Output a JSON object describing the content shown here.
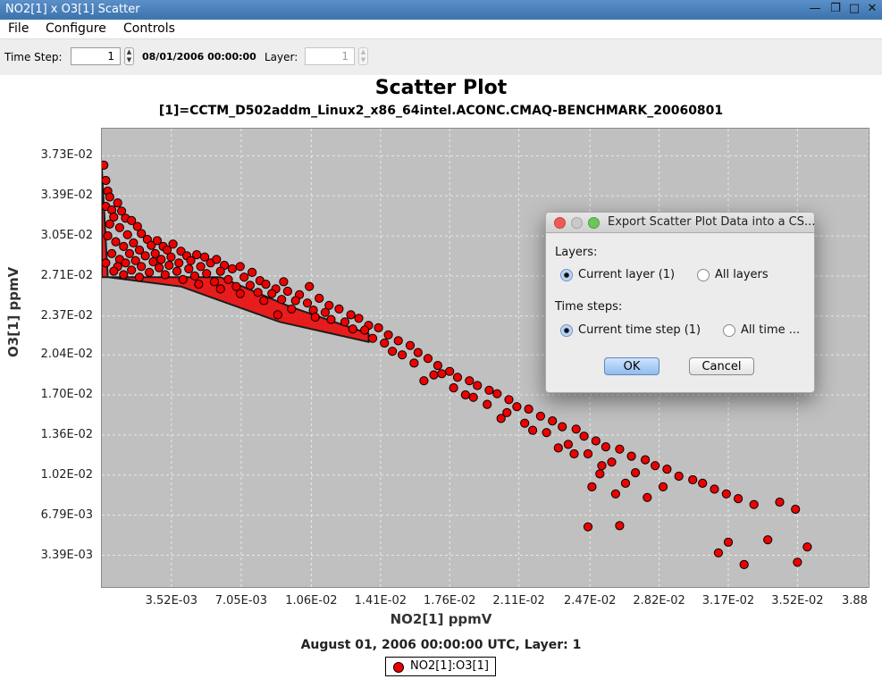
{
  "window": {
    "title": "NO2[1] x O3[1] Scatter"
  },
  "menu": [
    "File",
    "Configure",
    "Controls"
  ],
  "toolbar": {
    "time_step_label": "Time Step:",
    "time_step_value": "1",
    "datetime": "08/01/2006 00:00:00",
    "layer_label": "Layer:",
    "layer_value": "1"
  },
  "chart": {
    "title": "Scatter Plot",
    "subtitle": "[1]=CCTM_D502addm_Linux2_x86_64intel.ACONC.CMAQ-BENCHMARK_20060801",
    "footer": "August 01, 2006 00:00:00 UTC, Layer: 1",
    "legend": "NO2[1]:O3[1]"
  },
  "chart_data": {
    "type": "scatter",
    "xlabel": "NO2[1] ppmV",
    "ylabel": "O3[1] ppmV",
    "xlim": [
      0.0,
      0.0388
    ],
    "ylim": [
      0.0007,
      0.0396
    ],
    "grid": true,
    "legend_position": "bottom",
    "marker_color": "#ee0000",
    "x_ticks": [
      "3.52E-03",
      "7.05E-03",
      "1.06E-02",
      "1.41E-02",
      "1.76E-02",
      "2.11E-02",
      "2.47E-02",
      "2.82E-02",
      "3.17E-02",
      "3.52E-02",
      "3.88E-02"
    ],
    "y_ticks": [
      "3.39E-03",
      "6.79E-03",
      "1.02E-02",
      "1.36E-02",
      "1.70E-02",
      "2.04E-02",
      "2.37E-02",
      "2.71E-02",
      "3.05E-02",
      "3.39E-02",
      "3.73E-02"
    ],
    "series": [
      {
        "name": "NO2[1]:O3[1]",
        "points": [
          [
            0.0001,
            0.0365
          ],
          [
            0.0002,
            0.0352
          ],
          [
            0.0003,
            0.0343
          ],
          [
            0.0004,
            0.0338
          ],
          [
            0.0002,
            0.033
          ],
          [
            0.0005,
            0.0327
          ],
          [
            0.0008,
            0.0333
          ],
          [
            0.0006,
            0.0321
          ],
          [
            0.001,
            0.0326
          ],
          [
            0.0004,
            0.0315
          ],
          [
            0.0012,
            0.032
          ],
          [
            0.0009,
            0.0312
          ],
          [
            0.0015,
            0.0318
          ],
          [
            0.0003,
            0.0305
          ],
          [
            0.0007,
            0.03
          ],
          [
            0.0013,
            0.0306
          ],
          [
            0.0018,
            0.0313
          ],
          [
            0.002,
            0.0307
          ],
          [
            0.0011,
            0.0296
          ],
          [
            0.0016,
            0.0299
          ],
          [
            0.0023,
            0.0302
          ],
          [
            0.0005,
            0.029
          ],
          [
            0.0009,
            0.0285
          ],
          [
            0.0014,
            0.029
          ],
          [
            0.0019,
            0.0293
          ],
          [
            0.0025,
            0.0297
          ],
          [
            0.0028,
            0.0301
          ],
          [
            0.0031,
            0.0296
          ],
          [
            0.0002,
            0.0282
          ],
          [
            0.0008,
            0.0279
          ],
          [
            0.0012,
            0.0282
          ],
          [
            0.0017,
            0.0284
          ],
          [
            0.0022,
            0.0288
          ],
          [
            0.0027,
            0.029
          ],
          [
            0.0033,
            0.0293
          ],
          [
            0.0036,
            0.0298
          ],
          [
            0.0006,
            0.0275
          ],
          [
            0.0015,
            0.0276
          ],
          [
            0.002,
            0.0279
          ],
          [
            0.0026,
            0.0283
          ],
          [
            0.003,
            0.0285
          ],
          [
            0.0035,
            0.0287
          ],
          [
            0.004,
            0.0292
          ],
          [
            0.0043,
            0.0288
          ],
          [
            0.0011,
            0.0272
          ],
          [
            0.0024,
            0.0274
          ],
          [
            0.0029,
            0.0278
          ],
          [
            0.0034,
            0.028
          ],
          [
            0.0039,
            0.0282
          ],
          [
            0.0045,
            0.0284
          ],
          [
            0.0048,
            0.0289
          ],
          [
            0.0052,
            0.0287
          ],
          [
            0.0019,
            0.027
          ],
          [
            0.0032,
            0.0272
          ],
          [
            0.0038,
            0.0275
          ],
          [
            0.0044,
            0.0277
          ],
          [
            0.005,
            0.0279
          ],
          [
            0.0055,
            0.0282
          ],
          [
            0.0058,
            0.0285
          ],
          [
            0.0062,
            0.028
          ],
          [
            0.0041,
            0.0268
          ],
          [
            0.0047,
            0.0271
          ],
          [
            0.0053,
            0.0273
          ],
          [
            0.006,
            0.0275
          ],
          [
            0.0066,
            0.0277
          ],
          [
            0.007,
            0.0279
          ],
          [
            0.0049,
            0.0264
          ],
          [
            0.0057,
            0.0266
          ],
          [
            0.0064,
            0.0268
          ],
          [
            0.0072,
            0.027
          ],
          [
            0.0076,
            0.0274
          ],
          [
            0.008,
            0.0267
          ],
          [
            0.006,
            0.026
          ],
          [
            0.0068,
            0.0262
          ],
          [
            0.0075,
            0.0263
          ],
          [
            0.0083,
            0.0264
          ],
          [
            0.0088,
            0.026
          ],
          [
            0.0092,
            0.0266
          ],
          [
            0.007,
            0.0256
          ],
          [
            0.0079,
            0.0257
          ],
          [
            0.0086,
            0.0256
          ],
          [
            0.0094,
            0.0258
          ],
          [
            0.01,
            0.0255
          ],
          [
            0.0105,
            0.0262
          ],
          [
            0.0082,
            0.025
          ],
          [
            0.0091,
            0.0251
          ],
          [
            0.0098,
            0.025
          ],
          [
            0.0104,
            0.0248
          ],
          [
            0.011,
            0.0252
          ],
          [
            0.0115,
            0.0246
          ],
          [
            0.0096,
            0.0243
          ],
          [
            0.0107,
            0.0242
          ],
          [
            0.0113,
            0.024
          ],
          [
            0.012,
            0.0243
          ],
          [
            0.0126,
            0.0238
          ],
          [
            0.0089,
            0.0238
          ],
          [
            0.0116,
            0.0234
          ],
          [
            0.0123,
            0.0232
          ],
          [
            0.013,
            0.0235
          ],
          [
            0.0135,
            0.0229
          ],
          [
            0.0108,
            0.0236
          ],
          [
            0.0127,
            0.0226
          ],
          [
            0.0133,
            0.0225
          ],
          [
            0.014,
            0.0227
          ],
          [
            0.0145,
            0.0221
          ],
          [
            0.0137,
            0.0218
          ],
          [
            0.0143,
            0.0214
          ],
          [
            0.015,
            0.0216
          ],
          [
            0.0156,
            0.0212
          ],
          [
            0.0147,
            0.0207
          ],
          [
            0.0152,
            0.0204
          ],
          [
            0.016,
            0.0206
          ],
          [
            0.0165,
            0.0201
          ],
          [
            0.0158,
            0.0197
          ],
          [
            0.017,
            0.0195
          ],
          [
            0.0176,
            0.019
          ],
          [
            0.0168,
            0.0187
          ],
          [
            0.018,
            0.0185
          ],
          [
            0.0186,
            0.0182
          ],
          [
            0.0163,
            0.0182
          ],
          [
            0.0178,
            0.0176
          ],
          [
            0.019,
            0.0178
          ],
          [
            0.0196,
            0.0174
          ],
          [
            0.0184,
            0.017
          ],
          [
            0.02,
            0.0171
          ],
          [
            0.0206,
            0.0166
          ],
          [
            0.0195,
            0.0162
          ],
          [
            0.021,
            0.016
          ],
          [
            0.0216,
            0.0158
          ],
          [
            0.0205,
            0.0155
          ],
          [
            0.0222,
            0.0152
          ],
          [
            0.0228,
            0.0148
          ],
          [
            0.0214,
            0.0146
          ],
          [
            0.0233,
            0.0143
          ],
          [
            0.024,
            0.0141
          ],
          [
            0.0225,
            0.0138
          ],
          [
            0.0244,
            0.0135
          ],
          [
            0.025,
            0.0131
          ],
          [
            0.0236,
            0.0128
          ],
          [
            0.0255,
            0.0126
          ],
          [
            0.0262,
            0.0124
          ],
          [
            0.0246,
            0.012
          ],
          [
            0.0268,
            0.0118
          ],
          [
            0.0275,
            0.0115
          ],
          [
            0.0258,
            0.0113
          ],
          [
            0.028,
            0.011
          ],
          [
            0.0286,
            0.0107
          ],
          [
            0.027,
            0.0104
          ],
          [
            0.0292,
            0.0101
          ],
          [
            0.0299,
            0.0098
          ],
          [
            0.0304,
            0.0095
          ],
          [
            0.0239,
            0.012
          ],
          [
            0.0252,
            0.0103
          ],
          [
            0.0265,
            0.0095
          ],
          [
            0.0248,
            0.0092
          ],
          [
            0.026,
            0.0086
          ],
          [
            0.0276,
            0.0083
          ],
          [
            0.0284,
            0.0092
          ],
          [
            0.031,
            0.009
          ],
          [
            0.0316,
            0.0086
          ],
          [
            0.0322,
            0.0082
          ],
          [
            0.0246,
            0.0058
          ],
          [
            0.0262,
            0.0059
          ],
          [
            0.033,
            0.0077
          ],
          [
            0.0343,
            0.0079
          ],
          [
            0.0351,
            0.0073
          ],
          [
            0.0172,
            0.0188
          ],
          [
            0.0188,
            0.0168
          ],
          [
            0.0202,
            0.015
          ],
          [
            0.0218,
            0.014
          ],
          [
            0.0231,
            0.0125
          ],
          [
            0.0253,
            0.011
          ],
          [
            0.0312,
            0.0036
          ],
          [
            0.0317,
            0.0045
          ],
          [
            0.0337,
            0.0047
          ],
          [
            0.0325,
            0.0026
          ],
          [
            0.0357,
            0.0041
          ],
          [
            0.0352,
            0.0028
          ]
        ]
      }
    ]
  },
  "dialog": {
    "title": "Export Scatter Plot Data into a CS...",
    "layers_label": "Layers:",
    "current_layer": "Current layer (1)",
    "all_layers": "All layers",
    "timesteps_label": "Time steps:",
    "current_timestep": "Current time step (1)",
    "all_time": "All time ...",
    "ok": "OK",
    "cancel": "Cancel"
  }
}
